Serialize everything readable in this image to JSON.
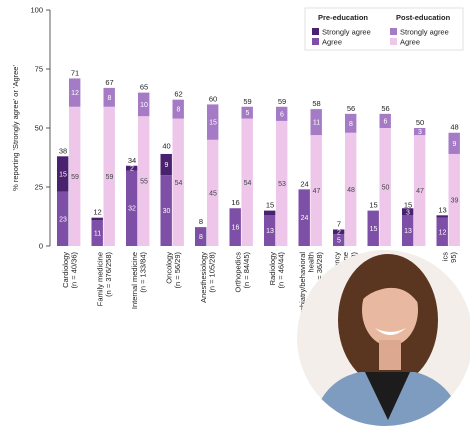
{
  "chart_data": {
    "type": "grouped-stacked-bar",
    "y_label": "% reporting 'Strongly agree' or 'Agree'",
    "ylim": [
      0,
      100
    ],
    "yticks": [
      0,
      25,
      50,
      75,
      100
    ],
    "legend_position": "upper right",
    "categories": [
      [
        "Cardiology",
        "(n = 40/36)"
      ],
      [
        "Family medicine",
        "(n = 376/258)"
      ],
      [
        "Internal medicine",
        "(n = 133/84)"
      ],
      [
        "Oncology",
        "(n = 56/29)"
      ],
      [
        "Anesthesiology",
        "(n = 105/28)"
      ],
      [
        "Orthopedics",
        "(n = 84/45)"
      ],
      [
        "Radiology",
        "(n = 46/44)"
      ],
      [
        "Psychiatry/behavioral",
        "health",
        "(n = 36/28)"
      ],
      [
        "ergency",
        "icine",
        "38)"
      ],
      [
        "y"
      ],
      null,
      [
        "ics",
        "95)"
      ]
    ],
    "groups": [
      "Pre-education",
      "Post-education"
    ],
    "series": [
      {
        "name": "Agree",
        "group": 0,
        "color": "#7d4fa6",
        "values": [
          23,
          11,
          32,
          30,
          8,
          16,
          13,
          24,
          5,
          15,
          13,
          12
        ],
        "value_labels": [
          "23",
          "11",
          "32",
          "30",
          "8",
          "16",
          "13",
          "24",
          "5",
          "15",
          "13",
          "12"
        ]
      },
      {
        "name": "Strongly agree",
        "group": 0,
        "color": "#4a216f",
        "values": [
          15,
          1,
          2,
          9,
          0,
          0,
          2,
          0,
          2,
          0,
          3,
          1
        ],
        "value_labels": [
          "15",
          null,
          "2",
          "9",
          null,
          null,
          null,
          null,
          "2",
          null,
          "3",
          null
        ]
      },
      {
        "name": "Agree",
        "group": 1,
        "color": "#edc6ea",
        "values": [
          59,
          59,
          55,
          54,
          45,
          54,
          53,
          47,
          48,
          50,
          47,
          39
        ],
        "value_labels": [
          "59",
          "59",
          "55",
          "54",
          "45",
          "54",
          "53",
          "47",
          "48",
          "50",
          "47",
          "39"
        ]
      },
      {
        "name": "Strongly agree",
        "group": 1,
        "color": "#a67bc6",
        "values": [
          12,
          8,
          10,
          8,
          15,
          5,
          6,
          11,
          8,
          6,
          3,
          9
        ],
        "value_labels": [
          "12",
          "8",
          "10",
          "8",
          "15",
          "5",
          "6",
          "11",
          "8",
          "6",
          "3",
          "9"
        ]
      }
    ],
    "totals": [
      [
        38,
        12,
        34,
        40,
        8,
        16,
        15,
        24,
        7,
        15,
        15,
        13
      ],
      [
        71,
        67,
        65,
        62,
        60,
        59,
        59,
        58,
        56,
        56,
        50,
        48
      ]
    ]
  }
}
